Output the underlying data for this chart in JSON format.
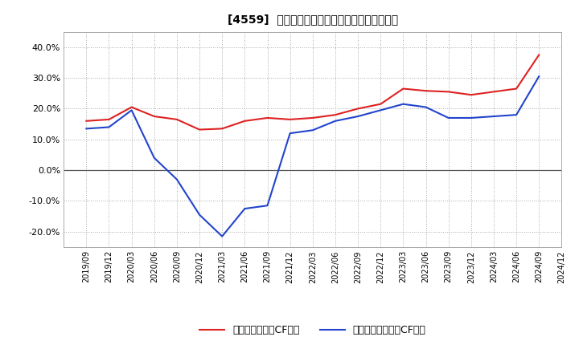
{
  "title": "[4559]  有利子負債キャッシュフロー比率の推移",
  "background_color": "#ffffff",
  "plot_bg_color": "#ffffff",
  "grid_color": "#aaaaaa",
  "x_labels": [
    "2019/09",
    "2019/12",
    "2020/03",
    "2020/06",
    "2020/09",
    "2020/12",
    "2021/03",
    "2021/06",
    "2021/09",
    "2021/12",
    "2022/03",
    "2022/06",
    "2022/09",
    "2022/12",
    "2023/03",
    "2023/06",
    "2023/09",
    "2023/12",
    "2024/03",
    "2024/06",
    "2024/09",
    "2024/12"
  ],
  "red_values": [
    16.0,
    16.5,
    20.5,
    17.5,
    16.5,
    13.2,
    13.5,
    16.0,
    17.0,
    16.5,
    17.0,
    18.0,
    20.0,
    21.5,
    26.5,
    25.8,
    25.5,
    24.5,
    25.5,
    26.5,
    37.5,
    null
  ],
  "blue_values": [
    13.5,
    14.0,
    19.5,
    4.0,
    -3.0,
    -14.5,
    -21.5,
    -12.5,
    -11.5,
    12.0,
    13.0,
    16.0,
    17.5,
    19.5,
    21.5,
    20.5,
    17.0,
    17.0,
    17.5,
    18.0,
    30.5,
    null
  ],
  "red_label": "有利子負債営業CF比率",
  "blue_label": "有利子負債フリーCF比率",
  "red_color": "#dd2222",
  "blue_color": "#2244cc",
  "ylim": [
    -25,
    45
  ],
  "yticks": [
    -20,
    -10,
    0,
    10,
    20,
    30,
    40
  ],
  "ytick_labels": [
    "-20.0%",
    "-10.0%",
    "0.0%",
    "10.0%",
    "20.0%",
    "30.0%",
    "40.0%"
  ]
}
